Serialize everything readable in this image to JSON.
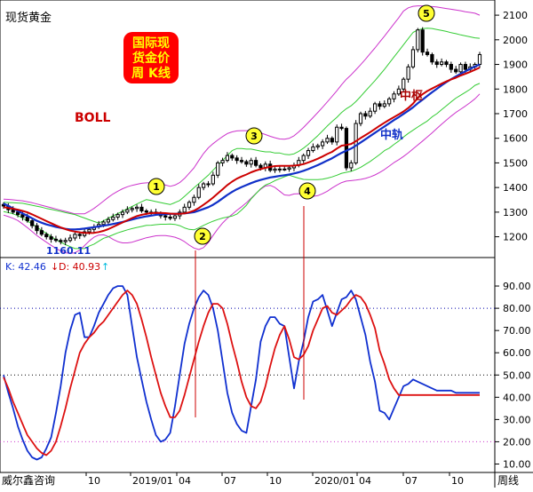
{
  "window": {
    "instrument_title": "现货黄金",
    "title_badge_lines": [
      "国际现",
      "货金价",
      "周 K线"
    ],
    "indicator_label": "BOLL",
    "period_label": "周线",
    "watermark": "威尔鑫咨询",
    "colors": {
      "frame": "#000000",
      "badge_bg": "#ff0000",
      "badge_text": "#ffff00",
      "candle": "#000000",
      "mid_line": "#cc0000",
      "ma_line": "#1030c8",
      "inner_band": "#33cc33",
      "outer_band": "#cc33cc",
      "k_line": "#1030d0",
      "d_line": "#dd1111",
      "circle_fill": "#ffff33",
      "annotation_text": "#1030c8",
      "annotation_red": "#aa0000",
      "dotted_ref": "#0000aa",
      "dotted_ref2": "#cc33cc"
    }
  },
  "chart_data": [
    {
      "type": "candlestick",
      "title": "现货黄金 周K线 BOLL",
      "ylim": [
        1130,
        2140
      ],
      "y_ticks": [
        1200,
        1300,
        1400,
        1500,
        1600,
        1700,
        1800,
        1900,
        2000,
        2100
      ],
      "x_ticks": [
        "10",
        "2019/01",
        "04",
        "07",
        "10",
        "2020/01",
        "04",
        "07",
        "10"
      ],
      "annotations": {
        "low_value_label": "1160.11",
        "mid_label": "中枢",
        "track_label": "中轨",
        "circle_numbers": [
          "1",
          "2",
          "3",
          "4",
          "5"
        ]
      },
      "close": [
        1325,
        1310,
        1300,
        1290,
        1280,
        1265,
        1245,
        1225,
        1210,
        1200,
        1190,
        1185,
        1180,
        1185,
        1195,
        1210,
        1205,
        1220,
        1230,
        1240,
        1250,
        1260,
        1270,
        1280,
        1290,
        1300,
        1310,
        1315,
        1320,
        1305,
        1300,
        1300,
        1295,
        1285,
        1280,
        1275,
        1285,
        1300,
        1320,
        1340,
        1360,
        1400,
        1415,
        1415,
        1450,
        1500,
        1510,
        1530,
        1520,
        1510,
        1505,
        1495,
        1510,
        1490,
        1480,
        1495,
        1470,
        1475,
        1475,
        1475,
        1480,
        1490,
        1510,
        1530,
        1550,
        1565,
        1570,
        1585,
        1600,
        1585,
        1645,
        1640,
        1480,
        1500,
        1660,
        1700,
        1690,
        1710,
        1740,
        1730,
        1740,
        1760,
        1780,
        1800,
        1840,
        1890,
        1960,
        2040,
        1950,
        1940,
        1910,
        1900,
        1910,
        1900,
        1880,
        1870,
        1900,
        1880,
        1890,
        1900,
        1940
      ],
      "mid_line": [
        1320,
        1317,
        1314,
        1310,
        1305,
        1299,
        1291,
        1282,
        1273,
        1264,
        1255,
        1246,
        1238,
        1231,
        1225,
        1221,
        1218,
        1216,
        1215,
        1216,
        1219,
        1224,
        1231,
        1240,
        1249,
        1258,
        1267,
        1276,
        1284,
        1289,
        1293,
        1296,
        1297,
        1297,
        1296,
        1294,
        1293,
        1293,
        1295,
        1299,
        1306,
        1317,
        1330,
        1344,
        1359,
        1376,
        1393,
        1410,
        1424,
        1436,
        1445,
        1453,
        1462,
        1469,
        1475,
        1480,
        1484,
        1487,
        1488,
        1488,
        1488,
        1489,
        1491,
        1495,
        1502,
        1509,
        1517,
        1526,
        1536,
        1545,
        1558,
        1570,
        1573,
        1577,
        1588,
        1601,
        1613,
        1625,
        1638,
        1651,
        1663,
        1675,
        1686,
        1697,
        1709,
        1723,
        1741,
        1764,
        1779,
        1792,
        1802,
        1812,
        1822,
        1831,
        1839,
        1846,
        1855,
        1862,
        1870,
        1878,
        1887
      ],
      "ma_line": [
        1335,
        1325,
        1315,
        1305,
        1295,
        1285,
        1275,
        1265,
        1257,
        1250,
        1245,
        1240,
        1236,
        1232,
        1230,
        1230,
        1231,
        1233,
        1236,
        1239,
        1242,
        1245,
        1248,
        1252,
        1256,
        1260,
        1265,
        1270,
        1275,
        1279,
        1283,
        1286,
        1289,
        1291,
        1292,
        1293,
        1293,
        1294,
        1295,
        1297,
        1300,
        1306,
        1313,
        1320,
        1330,
        1342,
        1356,
        1370,
        1382,
        1393,
        1402,
        1410,
        1418,
        1425,
        1431,
        1436,
        1441,
        1444,
        1447,
        1450,
        1453,
        1457,
        1462,
        1468,
        1475,
        1483,
        1491,
        1500,
        1510,
        1519,
        1530,
        1541,
        1550,
        1558,
        1570,
        1583,
        1596,
        1609,
        1622,
        1635,
        1648,
        1661,
        1674,
        1686,
        1699,
        1712,
        1726,
        1742,
        1757,
        1772,
        1787,
        1801,
        1815,
        1828,
        1840,
        1851,
        1862,
        1872,
        1882,
        1891,
        1900
      ],
      "inner_upper": [
        1340,
        1339,
        1338,
        1337,
        1336,
        1332,
        1328,
        1324,
        1320,
        1315,
        1311,
        1307,
        1303,
        1298,
        1294,
        1290,
        1283,
        1276,
        1269,
        1262,
        1256,
        1265,
        1275,
        1285,
        1294,
        1304,
        1314,
        1323,
        1333,
        1342,
        1351,
        1347,
        1343,
        1339,
        1335,
        1331,
        1339,
        1347,
        1364,
        1381,
        1399,
        1416,
        1433,
        1450,
        1470,
        1490,
        1510,
        1530,
        1550,
        1558,
        1558,
        1556,
        1556,
        1552,
        1548,
        1545,
        1545,
        1540,
        1540,
        1535,
        1533,
        1537,
        1547,
        1560,
        1575,
        1593,
        1611,
        1630,
        1650,
        1668,
        1685,
        1705,
        1720,
        1732,
        1749,
        1770,
        1792,
        1813,
        1834,
        1857,
        1880,
        1905,
        1930,
        1955,
        1980,
        2005,
        2030,
        2040,
        2045,
        2047,
        2046,
        2042,
        2038,
        2034,
        2029,
        2025,
        2020,
        2016,
        2012,
        2008,
        2006
      ],
      "inner_lower": [
        1302,
        1298,
        1293,
        1286,
        1276,
        1264,
        1252,
        1239,
        1226,
        1214,
        1201,
        1188,
        1178,
        1168,
        1160,
        1152,
        1152,
        1152,
        1162,
        1170,
        1182,
        1194,
        1200,
        1208,
        1216,
        1222,
        1228,
        1233,
        1238,
        1242,
        1246,
        1247,
        1249,
        1251,
        1251,
        1252,
        1250,
        1245,
        1236,
        1230,
        1228,
        1236,
        1246,
        1255,
        1263,
        1270,
        1276,
        1280,
        1284,
        1292,
        1309,
        1328,
        1354,
        1375,
        1395,
        1410,
        1418,
        1428,
        1436,
        1444,
        1450,
        1444,
        1438,
        1433,
        1432,
        1432,
        1432,
        1434,
        1438,
        1443,
        1450,
        1458,
        1462,
        1466,
        1473,
        1482,
        1494,
        1506,
        1520,
        1534,
        1550,
        1560,
        1575,
        1589,
        1605,
        1620,
        1633,
        1646,
        1658,
        1670,
        1687,
        1700,
        1716,
        1732,
        1748,
        1763,
        1775,
        1787,
        1799,
        1815,
        1823
      ],
      "outer_upper": [
        1353,
        1352,
        1350,
        1348,
        1346,
        1342,
        1338,
        1333,
        1328,
        1323,
        1318,
        1313,
        1308,
        1303,
        1298,
        1293,
        1293,
        1293,
        1303,
        1315,
        1330,
        1345,
        1360,
        1374,
        1385,
        1395,
        1403,
        1409,
        1413,
        1417,
        1419,
        1420,
        1418,
        1415,
        1410,
        1405,
        1410,
        1420,
        1437,
        1458,
        1480,
        1510,
        1538,
        1561,
        1578,
        1593,
        1607,
        1619,
        1626,
        1630,
        1631,
        1631,
        1630,
        1627,
        1622,
        1615,
        1608,
        1602,
        1597,
        1596,
        1600,
        1610,
        1626,
        1644,
        1664,
        1684,
        1705,
        1726,
        1748,
        1770,
        1793,
        1818,
        1840,
        1858,
        1878,
        1899,
        1921,
        1944,
        1967,
        1991,
        2015,
        2040,
        2065,
        2090,
        2117,
        2130,
        2136,
        2138,
        2138,
        2136,
        2135,
        2133,
        2130,
        2127,
        2124,
        2121,
        2118,
        2114,
        2111,
        2108,
        2100
      ],
      "outer_lower": [
        1288,
        1282,
        1275,
        1266,
        1252,
        1237,
        1221,
        1205,
        1191,
        1178,
        1165,
        1153,
        1142,
        1135,
        1132,
        1135,
        1146,
        1164,
        1183,
        1198,
        1207,
        1208,
        1201,
        1189,
        1180,
        1175,
        1175,
        1178,
        1184,
        1190,
        1196,
        1200,
        1204,
        1205,
        1205,
        1202,
        1198,
        1191,
        1180,
        1166,
        1154,
        1148,
        1156,
        1176,
        1205,
        1232,
        1256,
        1275,
        1291,
        1307,
        1322,
        1338,
        1357,
        1376,
        1393,
        1406,
        1409,
        1400,
        1385,
        1370,
        1368,
        1374,
        1375,
        1373,
        1368,
        1364,
        1367,
        1375,
        1385,
        1398,
        1410,
        1420,
        1426,
        1428,
        1430,
        1433,
        1437,
        1443,
        1451,
        1461,
        1473,
        1487,
        1501,
        1513,
        1526,
        1541,
        1557,
        1573,
        1589,
        1605,
        1622,
        1640,
        1657,
        1674,
        1690,
        1705,
        1718,
        1731,
        1745,
        1760,
        1780
      ]
    },
    {
      "type": "line",
      "title": "KD",
      "ylim": [
        7,
        100
      ],
      "y_ticks": [
        10,
        20,
        30,
        40,
        50,
        60,
        70,
        80,
        90
      ],
      "dotted_levels": [
        80,
        50,
        20
      ],
      "legend": {
        "k_label": "K: 42.46",
        "k_arrow": "↓",
        "d_label": "D: 40.93",
        "d_arrow": "↑"
      },
      "series": [
        {
          "name": "K",
          "values": [
            50,
            42,
            35,
            27,
            21,
            16,
            13,
            12,
            13,
            17,
            22,
            33,
            45,
            60,
            70,
            77,
            78,
            67,
            67,
            72,
            78,
            82,
            86,
            89,
            90,
            90,
            86,
            72,
            58,
            48,
            38,
            30,
            23,
            20,
            21,
            24,
            36,
            50,
            64,
            73,
            80,
            85,
            88,
            86,
            80,
            70,
            56,
            42,
            33,
            28,
            25,
            24,
            36,
            48,
            65,
            72,
            76,
            76,
            73,
            72,
            58,
            44,
            56,
            65,
            76,
            83,
            84,
            86,
            79,
            72,
            78,
            84,
            85,
            88,
            84,
            76,
            68,
            56,
            47,
            34,
            33,
            30,
            35,
            40,
            45,
            46,
            48,
            47,
            46,
            45,
            44,
            43,
            43,
            43,
            43,
            42,
            42,
            42,
            42,
            42,
            42
          ]
        },
        {
          "name": "D",
          "values": [
            49,
            44,
            38,
            33,
            28,
            23,
            20,
            17,
            15,
            14,
            16,
            20,
            27,
            35,
            44,
            52,
            60,
            64,
            67,
            69,
            72,
            74,
            77,
            80,
            83,
            86,
            88,
            86,
            82,
            75,
            67,
            58,
            50,
            42,
            36,
            31,
            31,
            34,
            41,
            49,
            57,
            65,
            72,
            78,
            82,
            82,
            80,
            73,
            64,
            56,
            47,
            40,
            36,
            35,
            38,
            45,
            54,
            62,
            68,
            72,
            66,
            58,
            57,
            59,
            63,
            70,
            75,
            80,
            81,
            78,
            77,
            79,
            81,
            84,
            86,
            85,
            82,
            77,
            71,
            61,
            55,
            48,
            44,
            41,
            41,
            41,
            41,
            41,
            41,
            41,
            41,
            41,
            41,
            41,
            41,
            41,
            41,
            41,
            41,
            41,
            41
          ]
        }
      ],
      "markers": {
        "point_2_label": "2",
        "point_4_label": "4"
      }
    }
  ]
}
